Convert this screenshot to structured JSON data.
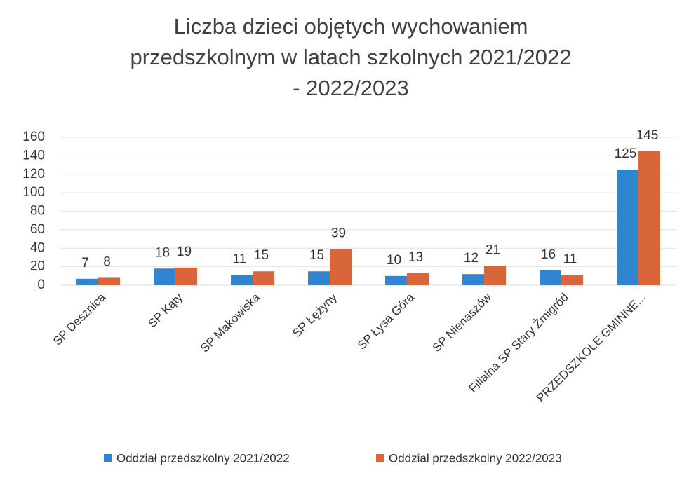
{
  "chart_data": {
    "type": "bar",
    "title": [
      "Liczba dzieci objętych wychowaniem",
      "przedszkolnym w latach szkolnych 2021/2022",
      "- 2022/2023"
    ],
    "categories": [
      "SP Desznica",
      "SP Kąty",
      "SP Makowiska",
      "SP Łężyny",
      "SP Łysa Góra",
      "SP Nienaszów",
      "Filialna SP Stary Żmigród",
      "PRZEDSZKOLE GMINNE..."
    ],
    "series": [
      {
        "name": "Oddział przedszkolny 2021/2022",
        "color": "#2e86d0",
        "values": [
          7,
          18,
          11,
          15,
          10,
          12,
          16,
          125
        ]
      },
      {
        "name": "Oddział przedszkolny 2022/2023",
        "color": "#d9663a",
        "values": [
          8,
          19,
          15,
          39,
          13,
          21,
          11,
          145
        ]
      }
    ],
    "ylim": [
      0,
      160
    ],
    "yticks": [
      0,
      20,
      40,
      60,
      80,
      100,
      120,
      140,
      160
    ],
    "grid": true,
    "legend": "bottom"
  }
}
